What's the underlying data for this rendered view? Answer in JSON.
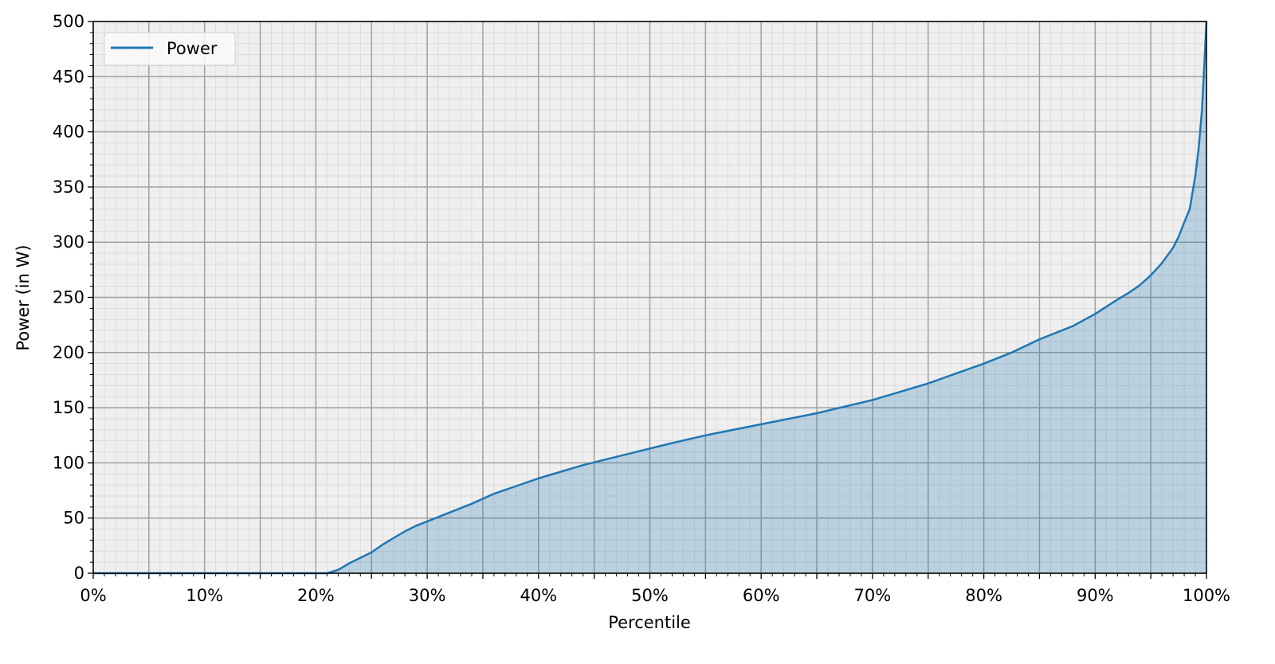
{
  "chart_data": {
    "type": "area",
    "title": "",
    "xlabel": "Percentile",
    "ylabel": "Power (in W)",
    "xlim": [
      0,
      100
    ],
    "ylim": [
      0,
      500
    ],
    "x_ticks": [
      0,
      10,
      20,
      30,
      40,
      50,
      60,
      70,
      80,
      90,
      100
    ],
    "x_tick_labels": [
      "0%",
      "10%",
      "20%",
      "30%",
      "40%",
      "50%",
      "60%",
      "70%",
      "80%",
      "90%",
      "100%"
    ],
    "y_ticks": [
      0,
      50,
      100,
      150,
      200,
      250,
      300,
      350,
      400,
      450,
      500
    ],
    "y_tick_labels": [
      "0",
      "50",
      "100",
      "150",
      "200",
      "250",
      "300",
      "350",
      "400",
      "450",
      "500"
    ],
    "grid": {
      "major": true,
      "minor": true
    },
    "legend": {
      "placement": "top-left",
      "entries": [
        "Power"
      ]
    },
    "colors": {
      "line": "#1f77b4",
      "fill": "#b9cfdd",
      "background": "#efefef",
      "major_grid": "#a0a0a0",
      "minor_grid": "#dcdcdc"
    },
    "series": [
      {
        "name": "Power",
        "x": [
          0,
          21,
          22,
          23,
          24,
          25,
          26,
          27,
          28,
          29,
          30,
          32,
          34,
          36,
          38,
          40,
          42,
          44,
          46,
          48,
          50,
          52,
          55,
          60,
          65,
          70,
          75,
          80,
          82.5,
          85,
          88,
          90,
          92,
          93,
          94,
          95,
          96,
          97,
          97.5,
          98,
          98.5,
          99,
          99.3,
          99.6,
          99.8,
          100
        ],
        "y": [
          0,
          0,
          3,
          9,
          14,
          19,
          26,
          32,
          38,
          43,
          47,
          55,
          63,
          72,
          79,
          86,
          92,
          98,
          103,
          108,
          113,
          118,
          125,
          135,
          145,
          157,
          172,
          190,
          200,
          212,
          224,
          235,
          248,
          254,
          261,
          270,
          281,
          295,
          305,
          318,
          330,
          360,
          385,
          420,
          460,
          500
        ]
      }
    ]
  }
}
